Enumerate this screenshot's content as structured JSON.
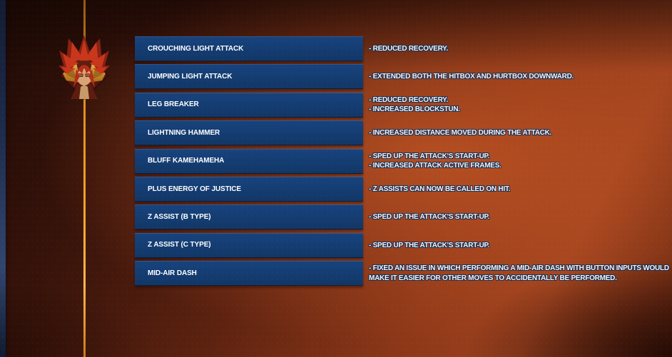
{
  "screen": {
    "name": "move-change-patch-notes"
  },
  "colors": {
    "accent_line": "#f0a228",
    "edge_strip_navy": "#1d2b4b",
    "label_box_blue": "#14386b",
    "label_text": "#ffffff",
    "description_fill": "#f6f3ed",
    "description_outline": "#1c3157",
    "background_rust": "#9c411e",
    "background_dark": "#1f0a05"
  },
  "icon": {
    "character_portrait": "gogeta-ss4-portrait-icon"
  },
  "rows": [
    {
      "label": "CROUCHING LIGHT ATTACK",
      "lines": [
        "- REDUCED RECOVERY."
      ]
    },
    {
      "label": "JUMPING LIGHT ATTACK",
      "lines": [
        "- EXTENDED BOTH THE HITBOX AND HURTBOX DOWNWARD."
      ]
    },
    {
      "label": "LEG BREAKER",
      "lines": [
        "- REDUCED RECOVERY.",
        "- INCREASED BLOCKSTUN."
      ]
    },
    {
      "label": "LIGHTNING HAMMER",
      "lines": [
        "- INCREASED DISTANCE MOVED DURING THE ATTACK."
      ]
    },
    {
      "label": "BLUFF KAMEHAMEHA",
      "lines": [
        "- SPED UP THE ATTACK'S START-UP.",
        "- INCREASED ATTACK ACTIVE FRAMES."
      ]
    },
    {
      "label": "PLUS ENERGY OF JUSTICE",
      "lines": [
        "- Z ASSISTS CAN NOW BE CALLED ON HIT."
      ]
    },
    {
      "label": "Z ASSIST (B TYPE)",
      "lines": [
        "- SPED UP THE ATTACK'S START-UP."
      ]
    },
    {
      "label": "Z ASSIST (C TYPE)",
      "lines": [
        "- SPED UP THE ATTACK'S START-UP."
      ]
    },
    {
      "label": "MID-AIR DASH",
      "lines": [
        "- FIXED AN ISSUE IN WHICH PERFORMING A MID-AIR DASH WITH BUTTON INPUTS WOULD",
        "MAKE IT EASIER FOR OTHER MOVES TO ACCIDENTALLY BE PERFORMED."
      ]
    }
  ]
}
